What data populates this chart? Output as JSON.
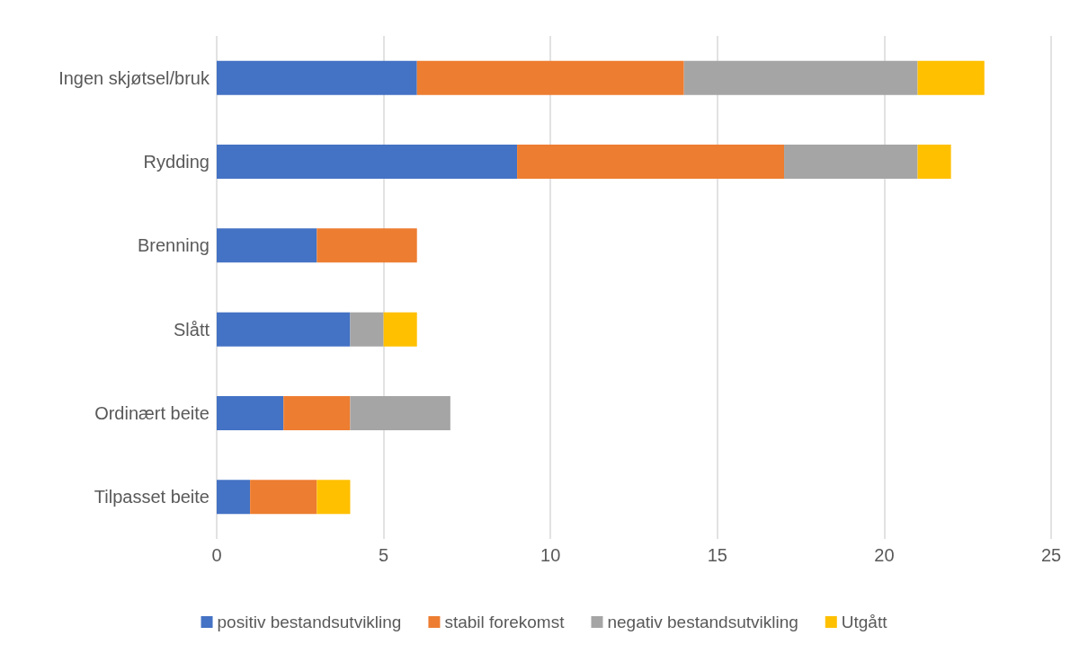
{
  "chart_data": {
    "type": "bar",
    "orientation": "horizontal",
    "stacked": true,
    "categories": [
      "Ingen skjøtsel/bruk",
      "Rydding",
      "Brenning",
      "Slått",
      "Ordinært beite",
      "Tilpasset beite"
    ],
    "series": [
      {
        "name": "positiv bestandsutvikling",
        "color": "#4472c4",
        "values": [
          6,
          9,
          3,
          4,
          2,
          1
        ]
      },
      {
        "name": "stabil forekomst",
        "color": "#ed7d31",
        "values": [
          8,
          8,
          3,
          0,
          2,
          2
        ]
      },
      {
        "name": "negativ bestandsutvikling",
        "color": "#a5a5a5",
        "values": [
          7,
          4,
          0,
          1,
          3,
          0
        ]
      },
      {
        "name": "Utgått",
        "color": "#ffc000",
        "values": [
          2,
          1,
          0,
          1,
          0,
          1
        ]
      }
    ],
    "xlim": [
      0,
      25
    ],
    "xticks": [
      0,
      5,
      10,
      15,
      20,
      25
    ],
    "grid": "x",
    "legend": "bottom"
  }
}
